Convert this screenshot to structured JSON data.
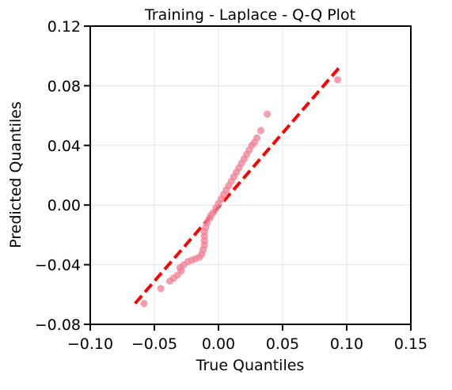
{
  "chart_data": {
    "type": "scatter",
    "title": "Training - Laplace - Q-Q Plot",
    "xlabel": "True Quantiles",
    "ylabel": "Predicted Quantiles",
    "xlim": [
      -0.1,
      0.15
    ],
    "ylim": [
      -0.08,
      0.12
    ],
    "x_ticks": [
      -0.1,
      -0.05,
      0.0,
      0.05,
      0.1,
      0.15
    ],
    "x_tick_labels": [
      "−0.10",
      "−0.05",
      "0.00",
      "0.05",
      "0.10",
      "0.15"
    ],
    "y_ticks": [
      -0.08,
      -0.04,
      0.0,
      0.04,
      0.08,
      0.12
    ],
    "y_tick_labels": [
      "−0.08",
      "−0.04",
      "0.00",
      "0.04",
      "0.08",
      "0.12"
    ],
    "grid": true,
    "colors": {
      "points": "#f07f94",
      "reference_line": "#ff0000"
    },
    "reference_line": {
      "style": "dashed",
      "x": [
        -0.065,
        0.095
      ],
      "y": [
        -0.066,
        0.093
      ]
    },
    "points": [
      {
        "x": -0.058,
        "y": -0.066
      },
      {
        "x": -0.045,
        "y": -0.056
      },
      {
        "x": -0.038,
        "y": -0.051
      },
      {
        "x": -0.035,
        "y": -0.049
      },
      {
        "x": -0.032,
        "y": -0.047
      },
      {
        "x": -0.029,
        "y": -0.044
      },
      {
        "x": -0.03,
        "y": -0.042
      },
      {
        "x": -0.027,
        "y": -0.04
      },
      {
        "x": -0.024,
        "y": -0.038
      },
      {
        "x": -0.021,
        "y": -0.037
      },
      {
        "x": -0.018,
        "y": -0.036
      },
      {
        "x": -0.015,
        "y": -0.035
      },
      {
        "x": -0.013,
        "y": -0.033
      },
      {
        "x": -0.012,
        "y": -0.03
      },
      {
        "x": -0.011,
        "y": -0.027
      },
      {
        "x": -0.011,
        "y": -0.024
      },
      {
        "x": -0.011,
        "y": -0.021
      },
      {
        "x": -0.011,
        "y": -0.018
      },
      {
        "x": -0.01,
        "y": -0.015
      },
      {
        "x": -0.009,
        "y": -0.012
      },
      {
        "x": -0.007,
        "y": -0.009
      },
      {
        "x": -0.006,
        "y": -0.007
      },
      {
        "x": -0.004,
        "y": -0.005
      },
      {
        "x": -0.002,
        "y": -0.002
      },
      {
        "x": 0.0,
        "y": 0.001
      },
      {
        "x": 0.002,
        "y": 0.004
      },
      {
        "x": 0.004,
        "y": 0.007
      },
      {
        "x": 0.006,
        "y": 0.01
      },
      {
        "x": 0.008,
        "y": 0.013
      },
      {
        "x": 0.01,
        "y": 0.016
      },
      {
        "x": 0.012,
        "y": 0.019
      },
      {
        "x": 0.014,
        "y": 0.022
      },
      {
        "x": 0.016,
        "y": 0.025
      },
      {
        "x": 0.018,
        "y": 0.028
      },
      {
        "x": 0.02,
        "y": 0.031
      },
      {
        "x": 0.022,
        "y": 0.034
      },
      {
        "x": 0.024,
        "y": 0.037
      },
      {
        "x": 0.026,
        "y": 0.04
      },
      {
        "x": 0.028,
        "y": 0.042
      },
      {
        "x": 0.03,
        "y": 0.045
      },
      {
        "x": 0.033,
        "y": 0.05
      },
      {
        "x": 0.038,
        "y": 0.061
      },
      {
        "x": 0.093,
        "y": 0.084
      }
    ]
  }
}
